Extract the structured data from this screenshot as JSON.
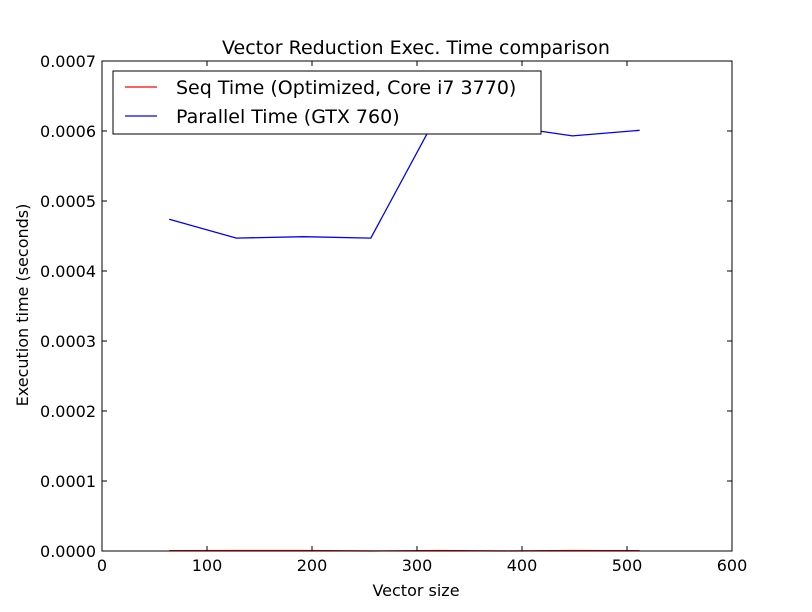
{
  "chart_data": {
    "type": "line",
    "title": "Vector Reduction Exec. Time comparison",
    "xlabel": "Vector size",
    "ylabel": "Execution time (seconds)",
    "xlim": [
      0,
      600
    ],
    "ylim": [
      0,
      0.0007
    ],
    "xticks": [
      0,
      100,
      200,
      300,
      400,
      500,
      600
    ],
    "xtick_labels": [
      "0",
      "100",
      "200",
      "300",
      "400",
      "500",
      "600"
    ],
    "yticks": [
      0,
      0.0001,
      0.0002,
      0.0003,
      0.0004,
      0.0005,
      0.0006,
      0.0007
    ],
    "ytick_labels": [
      "0.0000",
      "0.0001",
      "0.0002",
      "0.0003",
      "0.0004",
      "0.0005",
      "0.0006",
      "0.0007"
    ],
    "grid": false,
    "legend": "top-left",
    "x": [
      64,
      128,
      192,
      256,
      320,
      384,
      448,
      512
    ],
    "series": [
      {
        "name": "Seq Time (Optimized, Core i7 3770)",
        "color": "#ff0000",
        "values": [
          5e-07,
          6e-07,
          6e-07,
          1e-07,
          6e-07,
          1e-07,
          6e-07,
          5e-07
        ]
      },
      {
        "name": "Parallel Time (GTX 760)",
        "color": "#0000ff",
        "values": [
          0.000474,
          0.000447,
          0.000449,
          0.000447,
          0.000625,
          0.000607,
          0.000593,
          0.000601
        ]
      }
    ]
  }
}
